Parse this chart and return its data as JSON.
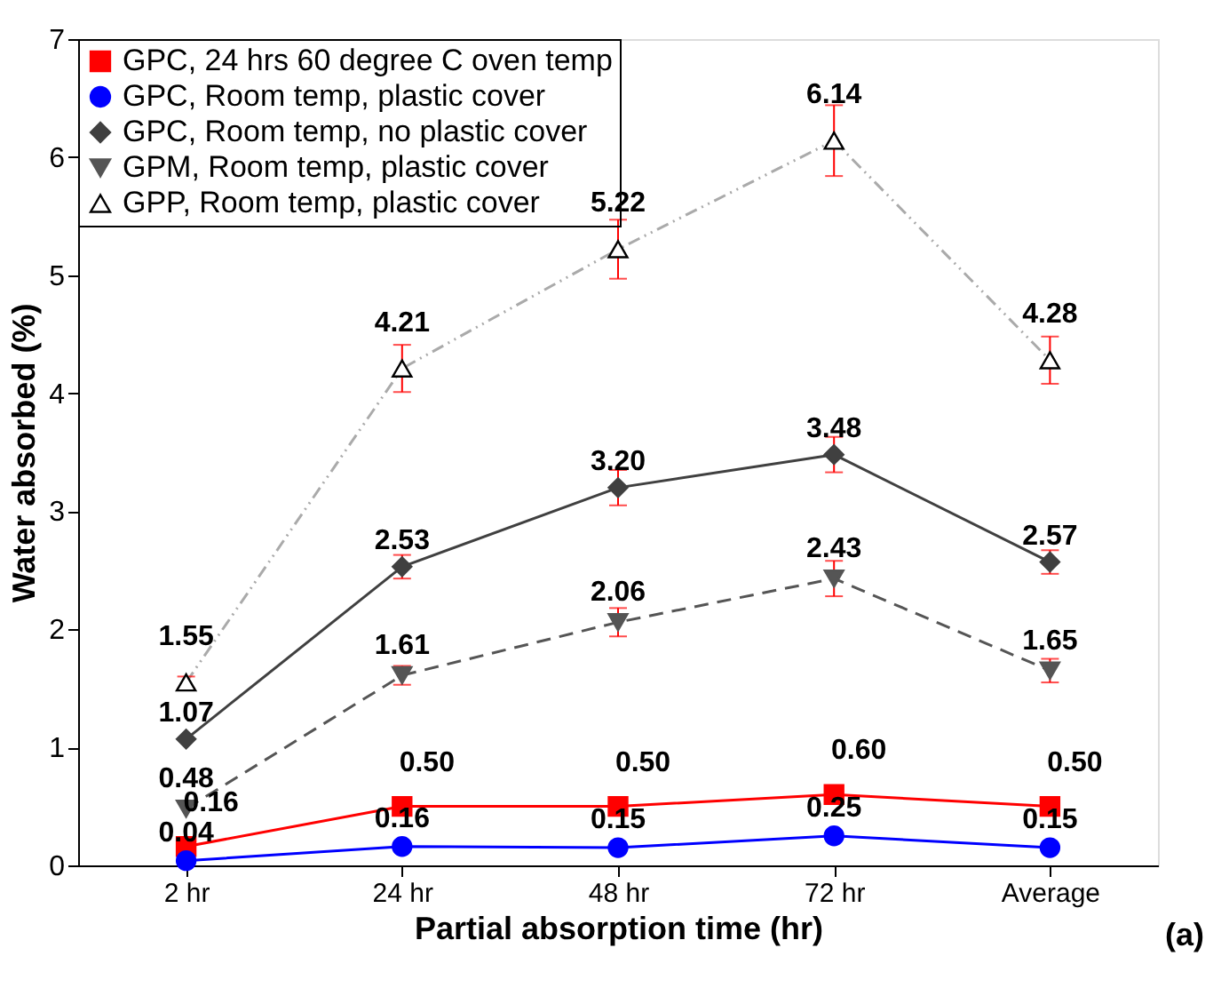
{
  "chart_data": {
    "type": "line",
    "xlabel": "Partial absorption time (hr)",
    "ylabel": "Water absorbed (%)",
    "categories": [
      "2 hr",
      "24 hr",
      "48 hr",
      "72 hr",
      "Average"
    ],
    "series": [
      {
        "name": "GPC, 24 hrs 60 degree C oven temp",
        "color": "#ff0000",
        "marker": "square",
        "line_style": "solid",
        "values": [
          0.16,
          0.5,
          0.5,
          0.6,
          0.5
        ],
        "value_labels": [
          "0.16",
          "0.50",
          "0.50",
          "0.60",
          "0.50"
        ]
      },
      {
        "name": "GPC, Room temp, plastic cover",
        "color": "#0000ff",
        "marker": "circle",
        "line_style": "solid",
        "values": [
          0.04,
          0.16,
          0.15,
          0.25,
          0.15
        ],
        "value_labels": [
          "0.04",
          "0.16",
          "0.15",
          "0.25",
          "0.15"
        ]
      },
      {
        "name": "GPC, Room temp, no plastic cover",
        "color": "#404040",
        "marker": "diamond",
        "line_style": "solid",
        "values": [
          1.07,
          2.53,
          3.2,
          3.48,
          2.57
        ],
        "value_labels": [
          "1.07",
          "2.53",
          "3.20",
          "3.48",
          "2.57"
        ],
        "errors": [
          null,
          0.1,
          0.15,
          0.15,
          0.1
        ]
      },
      {
        "name": "GPM, Room temp, plastic cover",
        "color": "#555555",
        "marker": "triangle-down",
        "line_style": "dashed",
        "values": [
          0.48,
          1.61,
          2.06,
          2.43,
          1.65
        ],
        "value_labels": [
          "0.48",
          "1.61",
          "2.06",
          "2.43",
          "1.65"
        ],
        "errors": [
          null,
          0.08,
          0.12,
          0.15,
          0.1
        ]
      },
      {
        "name": "GPP, Room temp, plastic cover",
        "color": "#aaaaaa",
        "marker": "triangle",
        "line_style": "dotted",
        "values": [
          1.55,
          4.21,
          5.22,
          6.14,
          4.28
        ],
        "value_labels": [
          "1.55",
          "4.21",
          "5.22",
          "6.14",
          "4.28"
        ],
        "errors": [
          0.05,
          0.2,
          0.25,
          0.3,
          0.2
        ]
      }
    ],
    "ylim": [
      0,
      7
    ],
    "yticks": [
      0,
      1,
      2,
      3,
      4,
      5,
      6,
      7
    ],
    "grid": false,
    "legend": "top left",
    "annotations": [
      "(a)"
    ]
  }
}
